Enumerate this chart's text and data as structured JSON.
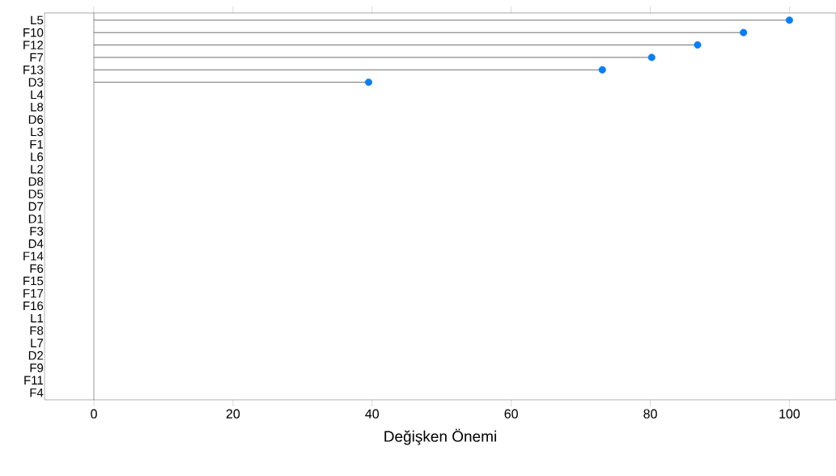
{
  "chart_data": {
    "type": "lollipop",
    "orientation": "horizontal",
    "xlabel": "Değişken Önemi",
    "categories": [
      "L5",
      "F10",
      "F12",
      "F7",
      "F13",
      "D3",
      "L4",
      "L8",
      "D6",
      "L3",
      "F1",
      "L6",
      "L2",
      "D8",
      "D5",
      "D7",
      "D1",
      "F3",
      "D4",
      "F14",
      "F6",
      "F15",
      "F17",
      "F16",
      "L1",
      "F8",
      "L7",
      "D2",
      "F9",
      "F11",
      "F4"
    ],
    "series": [
      {
        "color": "#0a7ff5",
        "values": [
          100,
          93.4,
          86.8,
          80.2,
          73.1,
          39.5,
          null,
          null,
          null,
          null,
          null,
          null,
          null,
          null,
          null,
          null,
          null,
          null,
          null,
          null,
          null,
          null,
          null,
          null,
          null,
          null,
          null,
          null,
          null,
          null,
          null
        ]
      }
    ],
    "marker": "circle",
    "xlim": [
      -7.1,
      106.7
    ],
    "xticks": [
      0,
      20,
      40,
      60,
      80,
      100
    ],
    "ref_lines": [
      {
        "axis": "x",
        "value": 0,
        "color": "#000000"
      }
    ],
    "grid": false
  }
}
